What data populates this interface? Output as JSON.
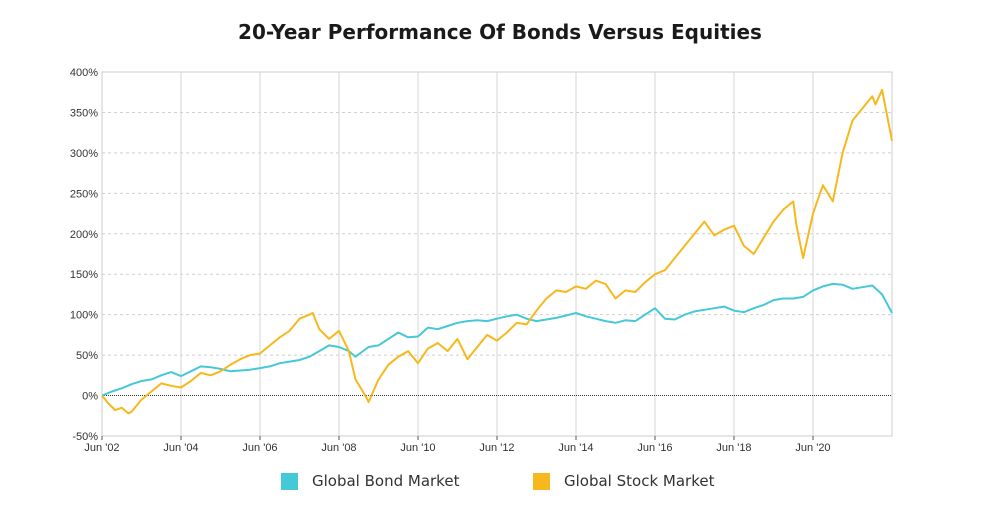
{
  "chart_data": {
    "type": "line",
    "title": "20-Year Performance Of Bonds Versus Equities",
    "xlabel": "",
    "ylabel": "",
    "x_range": [
      "2002-06",
      "2022-06"
    ],
    "ylim": [
      -50,
      400
    ],
    "y_ticks": [
      -50,
      0,
      50,
      100,
      150,
      200,
      250,
      300,
      350,
      400
    ],
    "y_tick_labels": [
      "-50%",
      "0%",
      "50%",
      "100%",
      "150%",
      "200%",
      "250%",
      "300%",
      "350%",
      "400%"
    ],
    "x_ticks": [
      "2002-06",
      "2004-06",
      "2006-06",
      "2008-06",
      "2010-06",
      "2012-06",
      "2014-06",
      "2016-06",
      "2018-06",
      "2020-06"
    ],
    "x_tick_labels": [
      "Jun '02",
      "Jun '04",
      "Jun '06",
      "Jun '08",
      "Jun '10",
      "Jun '12",
      "Jun '14",
      "Jun '16",
      "Jun '18",
      "Jun '20"
    ],
    "grid": true,
    "legend_position": "bottom-center",
    "series": [
      {
        "name": "Global Bond Market",
        "color": "#45c8d8",
        "x": [
          "2002-06",
          "2002-09",
          "2002-12",
          "2003-03",
          "2003-06",
          "2003-09",
          "2003-12",
          "2004-03",
          "2004-06",
          "2004-09",
          "2004-12",
          "2005-03",
          "2005-06",
          "2005-09",
          "2005-12",
          "2006-03",
          "2006-06",
          "2006-09",
          "2006-12",
          "2007-03",
          "2007-06",
          "2007-09",
          "2007-12",
          "2008-03",
          "2008-06",
          "2008-09",
          "2008-11",
          "2009-03",
          "2009-06",
          "2009-09",
          "2009-12",
          "2010-03",
          "2010-06",
          "2010-09",
          "2010-12",
          "2011-03",
          "2011-06",
          "2011-09",
          "2011-12",
          "2012-03",
          "2012-06",
          "2012-09",
          "2012-12",
          "2013-03",
          "2013-06",
          "2013-09",
          "2013-12",
          "2014-03",
          "2014-06",
          "2014-09",
          "2014-12",
          "2015-03",
          "2015-06",
          "2015-09",
          "2015-12",
          "2016-03",
          "2016-06",
          "2016-09",
          "2016-12",
          "2017-03",
          "2017-06",
          "2017-09",
          "2017-12",
          "2018-03",
          "2018-06",
          "2018-09",
          "2018-12",
          "2019-03",
          "2019-06",
          "2019-09",
          "2019-12",
          "2020-03",
          "2020-06",
          "2020-09",
          "2020-12",
          "2021-03",
          "2021-06",
          "2021-09",
          "2021-12",
          "2022-03",
          "2022-06"
        ],
        "values": [
          0,
          5,
          9,
          14,
          18,
          20,
          25,
          29,
          24,
          30,
          36,
          35,
          33,
          30,
          31,
          32,
          34,
          36,
          40,
          42,
          44,
          48,
          55,
          62,
          60,
          55,
          48,
          60,
          62,
          70,
          78,
          72,
          73,
          84,
          82,
          86,
          90,
          92,
          93,
          92,
          95,
          98,
          100,
          95,
          92,
          94,
          96,
          99,
          102,
          98,
          95,
          92,
          90,
          93,
          92,
          100,
          108,
          95,
          94,
          100,
          104,
          106,
          108,
          110,
          105,
          103,
          108,
          112,
          118,
          120,
          120,
          122,
          130,
          135,
          138,
          137,
          132,
          134,
          136,
          125,
          102
        ]
      },
      {
        "name": "Global Stock Market",
        "color": "#f7b81e",
        "x": [
          "2002-06",
          "2002-08",
          "2002-10",
          "2002-12",
          "2003-02",
          "2003-03",
          "2003-06",
          "2003-09",
          "2003-12",
          "2004-03",
          "2004-06",
          "2004-09",
          "2004-12",
          "2005-03",
          "2005-06",
          "2005-09",
          "2005-12",
          "2006-03",
          "2006-06",
          "2006-09",
          "2006-12",
          "2007-03",
          "2007-06",
          "2007-09",
          "2007-10",
          "2007-12",
          "2008-03",
          "2008-06",
          "2008-09",
          "2008-11",
          "2009-02",
          "2009-03",
          "2009-06",
          "2009-09",
          "2009-12",
          "2010-03",
          "2010-06",
          "2010-09",
          "2010-12",
          "2011-03",
          "2011-06",
          "2011-09",
          "2011-12",
          "2012-03",
          "2012-06",
          "2012-09",
          "2012-12",
          "2013-03",
          "2013-06",
          "2013-09",
          "2013-12",
          "2014-03",
          "2014-06",
          "2014-09",
          "2014-12",
          "2015-03",
          "2015-06",
          "2015-09",
          "2015-12",
          "2016-03",
          "2016-06",
          "2016-09",
          "2016-12",
          "2017-03",
          "2017-06",
          "2017-09",
          "2017-12",
          "2018-03",
          "2018-06",
          "2018-09",
          "2018-12",
          "2019-03",
          "2019-06",
          "2019-09",
          "2019-12",
          "2020-01",
          "2020-03",
          "2020-06",
          "2020-09",
          "2020-12",
          "2021-03",
          "2021-06",
          "2021-09",
          "2021-12",
          "2022-01",
          "2022-03",
          "2022-06"
        ],
        "values": [
          0,
          -10,
          -18,
          -15,
          -22,
          -20,
          -5,
          5,
          15,
          12,
          10,
          18,
          28,
          25,
          30,
          38,
          45,
          50,
          52,
          62,
          72,
          80,
          95,
          100,
          102,
          82,
          70,
          80,
          55,
          20,
          0,
          -8,
          20,
          38,
          48,
          55,
          40,
          58,
          65,
          55,
          70,
          45,
          60,
          75,
          68,
          78,
          90,
          88,
          105,
          120,
          130,
          128,
          135,
          132,
          142,
          138,
          120,
          130,
          128,
          140,
          150,
          155,
          170,
          185,
          200,
          215,
          198,
          205,
          210,
          185,
          175,
          195,
          215,
          230,
          240,
          210,
          170,
          225,
          260,
          240,
          300,
          340,
          355,
          370,
          360,
          378,
          315
        ]
      }
    ]
  },
  "legend": {
    "items": [
      {
        "label": "Global Bond Market",
        "color": "#45c8d8"
      },
      {
        "label": "Global Stock Market",
        "color": "#f7b81e"
      }
    ]
  }
}
